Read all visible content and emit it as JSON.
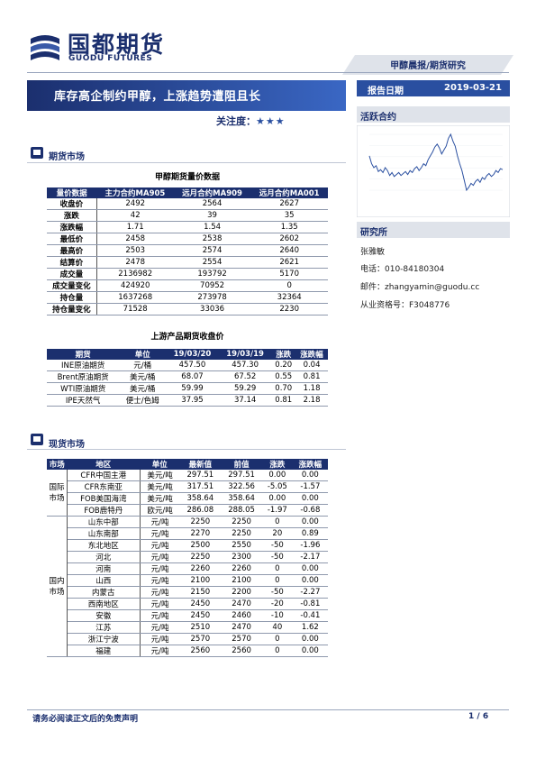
{
  "header": {
    "logo_cn": "国都期货",
    "logo_en": "GUODU FUTURES",
    "banner": "甲醇晨报/期货研究"
  },
  "title": "库存高企制约甲醇，上涨趋势遭阻且长",
  "focus": {
    "label": "关注度：",
    "stars": "★★★"
  },
  "report": {
    "label": "报告日期",
    "date": "2019-03-21"
  },
  "sidebar": {
    "active_contract": "活跃合约",
    "research": "研究所",
    "analyst": "张雅敏",
    "phone": "电话：010-84180304",
    "email": "邮件：zhangyamin@guodu.cc",
    "license": "从业资格号：F3048776"
  },
  "sections": {
    "futures": "期货市场",
    "spot": "现货市场"
  },
  "futures_table": {
    "caption": "甲醇期货量价数据",
    "headers": [
      "量价数据",
      "主力合约MA905",
      "远月合约MA909",
      "远月合约MA001"
    ],
    "rows": [
      [
        "收盘价",
        "2492",
        "2564",
        "2627"
      ],
      [
        "涨跌",
        "42",
        "39",
        "35"
      ],
      [
        "涨跌幅",
        "1.71",
        "1.54",
        "1.35"
      ],
      [
        "最低价",
        "2458",
        "2538",
        "2602"
      ],
      [
        "最高价",
        "2503",
        "2574",
        "2640"
      ],
      [
        "结算价",
        "2478",
        "2554",
        "2621"
      ],
      [
        "成交量",
        "2136982",
        "193792",
        "5170"
      ],
      [
        "成交量变化",
        "424920",
        "70952",
        "0"
      ],
      [
        "持仓量",
        "1637268",
        "273978",
        "32364"
      ],
      [
        "持仓量变化",
        "71528",
        "33036",
        "2230"
      ]
    ]
  },
  "upstream_table": {
    "caption": "上游产品期货收盘价",
    "headers": [
      "期货",
      "单位",
      "19/03/20",
      "19/03/19",
      "涨跌",
      "涨跌幅"
    ],
    "rows": [
      [
        "INE原油期货",
        "元/桶",
        "457.50",
        "457.30",
        "0.20",
        "0.04"
      ],
      [
        "Brent原油期货",
        "美元/桶",
        "68.07",
        "67.52",
        "0.55",
        "0.81"
      ],
      [
        "WTI原油期货",
        "美元/桶",
        "59.99",
        "59.29",
        "0.70",
        "1.18"
      ],
      [
        "IPE天然气",
        "便士/色姆",
        "37.95",
        "37.14",
        "0.81",
        "2.18"
      ]
    ]
  },
  "spot_table": {
    "headers": [
      "市场",
      "地区",
      "单位",
      "最新值",
      "前值",
      "涨跌",
      "涨跌幅"
    ],
    "intl_group": "国际市场",
    "domestic_group": "国内市场",
    "intl_rows": [
      [
        "CFR中国主港",
        "美元/吨",
        "297.51",
        "297.51",
        "0.00",
        "0.00"
      ],
      [
        "CFR东南亚",
        "美元/吨",
        "317.51",
        "322.56",
        "-5.05",
        "-1.57"
      ],
      [
        "FOB美国海湾",
        "美元/吨",
        "358.64",
        "358.64",
        "0.00",
        "0.00"
      ],
      [
        "FOB鹿特丹",
        "欧元/吨",
        "286.08",
        "288.05",
        "-1.97",
        "-0.68"
      ]
    ],
    "domestic_rows": [
      [
        "山东中部",
        "元/吨",
        "2250",
        "2250",
        "0",
        "0.00"
      ],
      [
        "山东南部",
        "元/吨",
        "2270",
        "2250",
        "20",
        "0.89"
      ],
      [
        "东北地区",
        "元/吨",
        "2500",
        "2550",
        "-50",
        "-1.96"
      ],
      [
        "河北",
        "元/吨",
        "2250",
        "2300",
        "-50",
        "-2.17"
      ],
      [
        "河南",
        "元/吨",
        "2260",
        "2260",
        "0",
        "0.00"
      ],
      [
        "山西",
        "元/吨",
        "2100",
        "2100",
        "0",
        "0.00"
      ],
      [
        "内蒙古",
        "元/吨",
        "2150",
        "2200",
        "-50",
        "-2.27"
      ],
      [
        "西南地区",
        "元/吨",
        "2450",
        "2470",
        "-20",
        "-0.81"
      ],
      [
        "安徽",
        "元/吨",
        "2450",
        "2460",
        "-10",
        "-0.41"
      ],
      [
        "江苏",
        "元/吨",
        "2510",
        "2470",
        "40",
        "1.62"
      ],
      [
        "浙江宁波",
        "元/吨",
        "2570",
        "2570",
        "0",
        "0.00"
      ],
      [
        "福建",
        "元/吨",
        "2560",
        "2560",
        "0",
        "0.00"
      ]
    ]
  },
  "footer": {
    "disclaimer": "请务必阅读正文后的免责声明",
    "page": "1 / 6"
  },
  "mini_chart": {
    "type": "line",
    "color": "#2a4fa0",
    "values": [
      2500,
      2420,
      2380,
      2400,
      2340,
      2360,
      2330,
      2380,
      2350,
      2300,
      2330,
      2290,
      2310,
      2330,
      2300,
      2320,
      2340,
      2310,
      2350,
      2330,
      2370,
      2390,
      2350,
      2380,
      2420,
      2400,
      2460,
      2500,
      2540,
      2590,
      2620,
      2580,
      2520,
      2560,
      2600,
      2680,
      2720,
      2650,
      2600,
      2500,
      2420,
      2350,
      2250,
      2150,
      2180,
      2220,
      2200,
      2240,
      2260,
      2230,
      2280,
      2260,
      2300,
      2320,
      2290,
      2310,
      2350,
      2330,
      2370,
      2360
    ]
  }
}
